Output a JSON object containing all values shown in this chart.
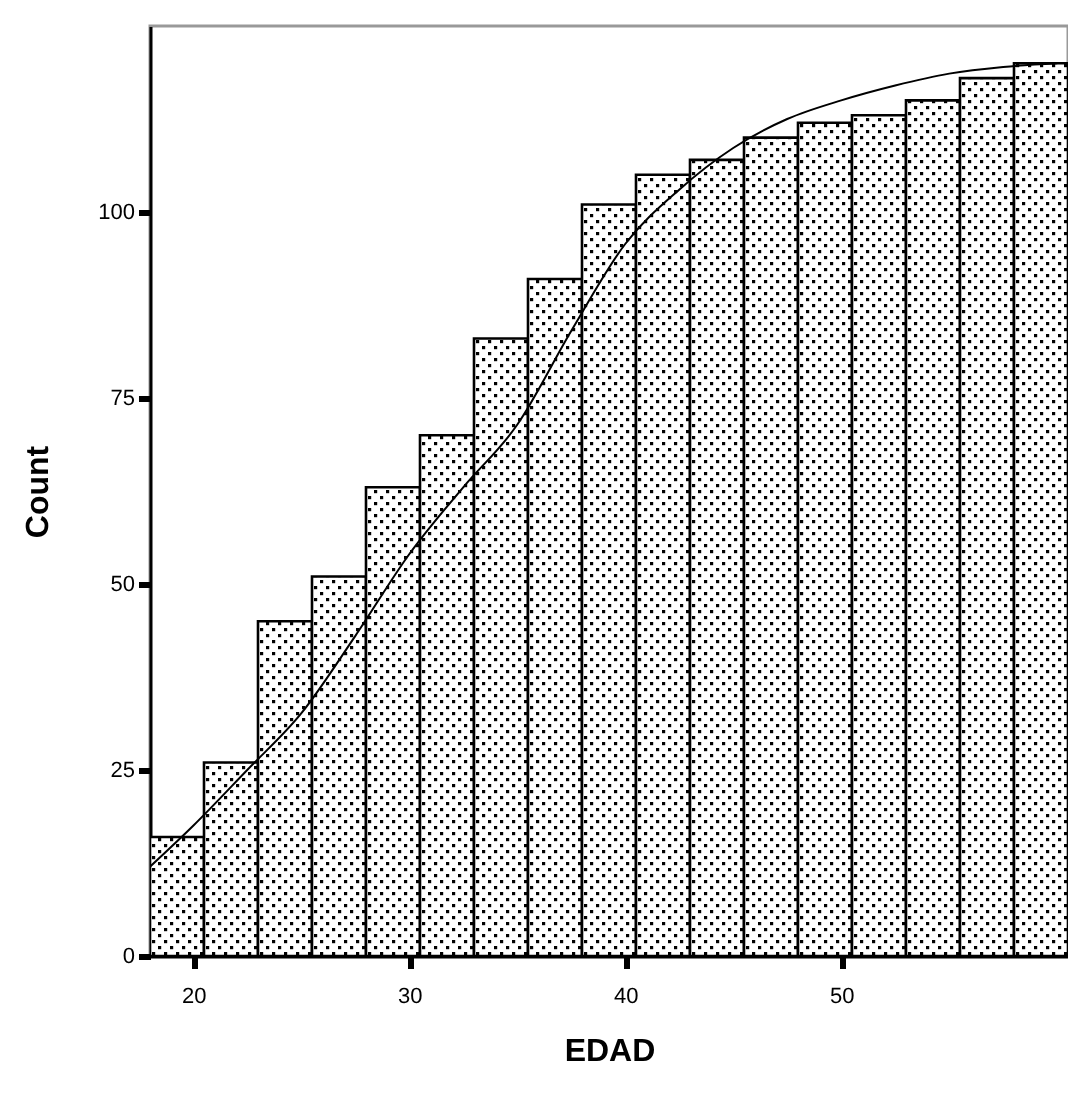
{
  "chart_data": {
    "type": "histogram",
    "xlabel": "EDAD",
    "ylabel": "Count",
    "bins": [
      18,
      20.5,
      23,
      25.5,
      28,
      30.5,
      33,
      35.5,
      38,
      40.5,
      43,
      45.5,
      48,
      50.5,
      53,
      55.5,
      58,
      60.5
    ],
    "series": [
      {
        "color": "#000000",
        "values": [
          16,
          26,
          45,
          51,
          63,
          70,
          83,
          91,
          101,
          105,
          107,
          110,
          112,
          113,
          115,
          118,
          120
        ]
      },
      {
        "type": "line",
        "color": "#000000",
        "x": [
          18,
          20,
          22.5,
          25,
          27.5,
          30,
          32.5,
          35,
          37.5,
          40,
          42.5,
          45,
          47.5,
          50,
          52.5,
          55,
          57.5,
          60
        ],
        "values": [
          12,
          17.5,
          25,
          32.6,
          43,
          54,
          63,
          71.4,
          84,
          95.7,
          103,
          108.6,
          112.5,
          115,
          117,
          118.6,
          119.5,
          120
        ]
      }
    ],
    "xlim": [
      18,
      60.5
    ],
    "ylim": [
      0,
      125
    ],
    "xticks": [
      20,
      30,
      40,
      50
    ],
    "yticks": [
      0,
      25,
      50,
      75,
      100
    ],
    "grid": false
  }
}
